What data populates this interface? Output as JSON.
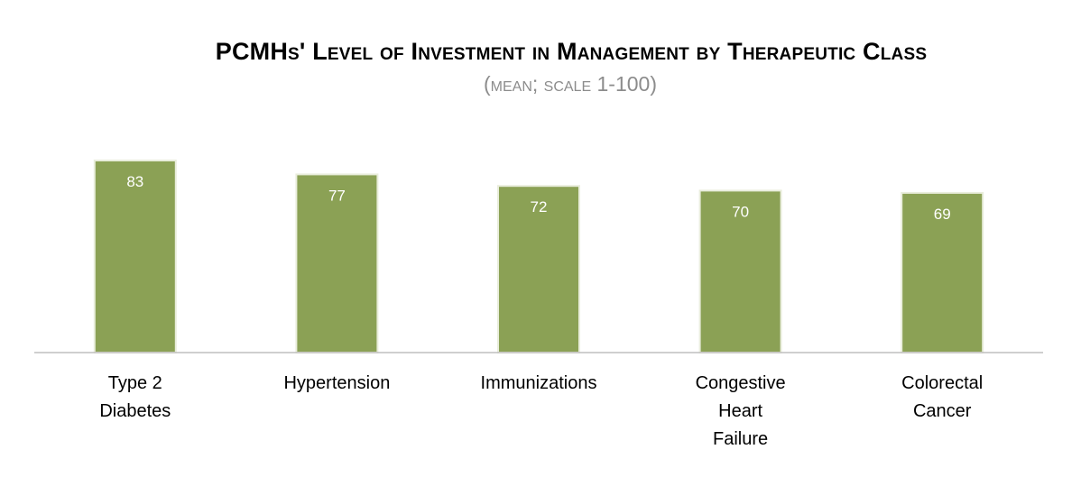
{
  "chart_data": {
    "type": "bar",
    "title": "PCMHs' Level of Investment in Management by Therapeutic Class",
    "subtitle": "(mean; scale 1-100)",
    "categories": [
      "Type 2 Diabetes",
      "Hypertension",
      "Immunizations",
      "Congestive Heart Failure",
      "Colorectal Cancer"
    ],
    "category_label_lines": [
      [
        "Type 2",
        "Diabetes"
      ],
      [
        "Hypertension"
      ],
      [
        "Immunizations"
      ],
      [
        "Congestive",
        "Heart",
        "Failure"
      ],
      [
        "Colorectal",
        "Cancer"
      ]
    ],
    "values": [
      83,
      77,
      72,
      70,
      69
    ],
    "data_labels": [
      "83",
      "77",
      "72",
      "70",
      "69"
    ],
    "ylim": [
      0,
      83
    ],
    "xlabel": "",
    "ylabel": "",
    "grid": false,
    "legend": "none",
    "colors": {
      "bar": "#8ba155",
      "bar_edge": "#e9eddc",
      "axis": "#bfbfbf",
      "data_label": "#ffffff"
    }
  }
}
